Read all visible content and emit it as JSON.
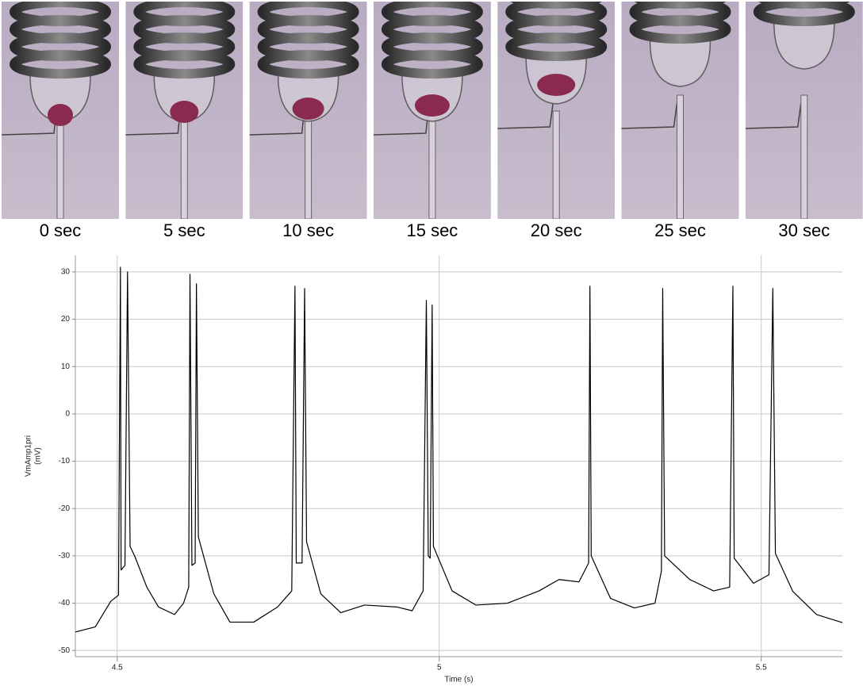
{
  "panels": {
    "captions": [
      "0 sec",
      "5 sec",
      "10 sec",
      "15 sec",
      "20 sec",
      "25 sec",
      "30 sec"
    ]
  },
  "chart_data": {
    "type": "line",
    "xlabel": "Time (s)",
    "ylabel": [
      "VmAmp1pri",
      "(mV)"
    ],
    "color": "#000000",
    "x": [
      4.435,
      4.466,
      4.49,
      4.502,
      4.505,
      4.506,
      4.512,
      4.516,
      4.52,
      4.527,
      4.546,
      4.564,
      4.589,
      4.603,
      4.611,
      4.613,
      4.616,
      4.621,
      4.623,
      4.626,
      4.65,
      4.675,
      4.712,
      4.749,
      4.771,
      4.776,
      4.778,
      4.787,
      4.791,
      4.794,
      4.816,
      4.847,
      4.884,
      4.934,
      4.958,
      4.975,
      4.98,
      4.983,
      4.986,
      4.989,
      4.991,
      5.02,
      5.057,
      5.106,
      5.155,
      5.186,
      5.217,
      5.232,
      5.234,
      5.236,
      5.266,
      5.303,
      5.335,
      5.345,
      5.347,
      5.35,
      5.389,
      5.426,
      5.451,
      5.456,
      5.458,
      5.488,
      5.512,
      5.518,
      5.522,
      5.549,
      5.586,
      5.626
    ],
    "values": [
      -46.1,
      -45,
      -39.6,
      -38.3,
      31,
      -33,
      -32,
      30,
      -28,
      -30,
      -36.6,
      -40.8,
      -42.4,
      -40,
      -36.6,
      29.5,
      -32,
      -31.5,
      27.5,
      -26,
      -38,
      -44,
      -44,
      -40.8,
      -37.4,
      27,
      -31.5,
      -31.5,
      26.5,
      -27,
      -38,
      -42,
      -40.4,
      -40.8,
      -41.6,
      -37.4,
      24,
      -30,
      -30.5,
      23,
      -28,
      -37.4,
      -40.4,
      -40,
      -37.4,
      -35,
      -35.5,
      -31.5,
      27,
      -30,
      -39,
      -41,
      -40,
      -33.2,
      26.5,
      -30,
      -35,
      -37.4,
      -36.6,
      27,
      -30.5,
      -35.8,
      -34,
      26.5,
      -29.5,
      -37.5,
      -42.4,
      -44.1
    ],
    "xlim": [
      4.435,
      5.626
    ],
    "ylim": [
      -51.3,
      33.5
    ],
    "xticks": [
      4.5,
      5,
      5.5
    ],
    "yticks": [
      -50,
      -40,
      -30,
      -20,
      -10,
      0,
      10,
      20,
      30
    ],
    "grid": true
  }
}
